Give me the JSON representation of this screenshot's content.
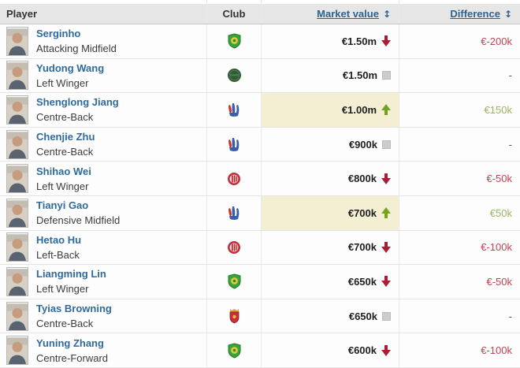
{
  "table": {
    "columns": {
      "player": "Player",
      "club": "Club",
      "market_value": "Market value",
      "difference": "Difference",
      "sort_icon": "↕"
    },
    "rows": [
      {
        "player": "Serginho",
        "position": "Attacking Midfield",
        "club_icon": "beijing-guoan-badge",
        "market_value": "€1.50m",
        "trend": "down",
        "difference": "€-200k",
        "diff_type": "negative",
        "highlight": false
      },
      {
        "player": "Yudong Wang",
        "position": "Left Winger",
        "club_icon": "dark-green-circle-badge",
        "market_value": "€1.50m",
        "trend": "same",
        "difference": "-",
        "diff_type": "none",
        "highlight": false
      },
      {
        "player": "Shenglong Jiang",
        "position": "Centre-Back",
        "club_icon": "shanghai-shenhua-badge",
        "market_value": "€1.00m",
        "trend": "up",
        "difference": "€150k",
        "diff_type": "positive",
        "highlight": true
      },
      {
        "player": "Chenjie Zhu",
        "position": "Centre-Back",
        "club_icon": "shanghai-shenhua-badge",
        "market_value": "€900k",
        "trend": "same",
        "difference": "-",
        "diff_type": "none",
        "highlight": false
      },
      {
        "player": "Shihao Wei",
        "position": "Left Winger",
        "club_icon": "red-circle-badge",
        "market_value": "€800k",
        "trend": "down",
        "difference": "€-50k",
        "diff_type": "negative",
        "highlight": false
      },
      {
        "player": "Tianyi Gao",
        "position": "Defensive Midfield",
        "club_icon": "shanghai-shenhua-badge",
        "market_value": "€700k",
        "trend": "up",
        "difference": "€50k",
        "diff_type": "positive",
        "highlight": true
      },
      {
        "player": "Hetao Hu",
        "position": "Left-Back",
        "club_icon": "red-circle-badge",
        "market_value": "€700k",
        "trend": "down",
        "difference": "€-100k",
        "diff_type": "negative",
        "highlight": false
      },
      {
        "player": "Liangming Lin",
        "position": "Left Winger",
        "club_icon": "beijing-guoan-badge",
        "market_value": "€650k",
        "trend": "down",
        "difference": "€-50k",
        "diff_type": "negative",
        "highlight": false
      },
      {
        "player": "Tyias Browning",
        "position": "Centre-Back",
        "club_icon": "shanghai-port-badge",
        "market_value": "€650k",
        "trend": "same",
        "difference": "-",
        "diff_type": "none",
        "highlight": false
      },
      {
        "player": "Yuning Zhang",
        "position": "Centre-Forward",
        "club_icon": "beijing-guoan-badge",
        "market_value": "€600k",
        "trend": "down",
        "difference": "€-100k",
        "diff_type": "negative",
        "highlight": false
      }
    ]
  },
  "colors": {
    "header_bg": "#e6e6e6",
    "header_link": "#31618c",
    "accent_link": "#2f6a9d",
    "negative": "#c24253",
    "positive": "#9ab55c",
    "arrow_down": "#a81e33",
    "arrow_up": "#74a41f",
    "highlight_bg": "#f4eed3"
  }
}
